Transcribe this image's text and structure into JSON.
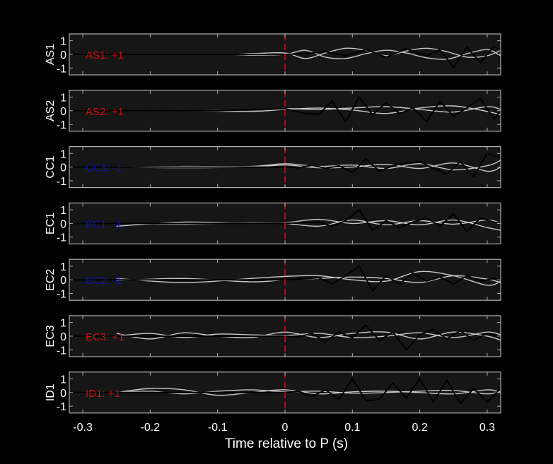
{
  "chart_data": {
    "type": "line",
    "xlabel": "Time relative to P (s)",
    "xlim": [
      -0.32,
      0.32
    ],
    "xticks": [
      -0.3,
      -0.2,
      -0.1,
      0,
      0.1,
      0.2,
      0.3
    ],
    "xtick_labels": [
      "-0.3",
      "-0.2",
      "-0.1",
      "0",
      "0.1",
      "0.2",
      "0.3"
    ],
    "ylim": [
      -1.5,
      1.5
    ],
    "yticks": [
      1,
      0,
      -1
    ],
    "ytick_labels": [
      "1",
      "0",
      "-1"
    ],
    "marker": {
      "x": 0,
      "color": "#d01010",
      "style": "dashed"
    },
    "colors": {
      "background": "#000000",
      "panel": "#161616",
      "frame": "#b0b0b0",
      "trace_black": "#000000",
      "trace_gray": "#c8c8c8",
      "polarity_positive": "#cc1111",
      "polarity_negative": "#1010aa"
    },
    "panels": [
      {
        "station": "AS1",
        "annotation": "AS1: +1",
        "polarity": "positive",
        "black": {
          "x": [
            -0.32,
            -0.25,
            -0.15,
            -0.05,
            0,
            0.03,
            0.06,
            0.09,
            0.12,
            0.15,
            0.18,
            0.21,
            0.23,
            0.25,
            0.27,
            0.29,
            0.31,
            0.32
          ],
          "y": [
            0,
            0,
            0,
            0,
            0,
            0.05,
            0.2,
            -0.1,
            0.35,
            -0.2,
            0.4,
            -0.1,
            0.35,
            -0.95,
            0.5,
            -0.6,
            0.6,
            0.3
          ]
        },
        "gray": [
          {
            "x": [
              -0.32,
              -0.1,
              -0.05,
              0,
              0.03,
              0.06,
              0.09,
              0.12,
              0.15,
              0.18,
              0.21,
              0.24,
              0.27,
              0.3,
              0.32
            ],
            "y": [
              0,
              0,
              0.05,
              0.1,
              -0.3,
              0.1,
              0.45,
              0.3,
              -0.1,
              0.25,
              0.45,
              0.2,
              -0.2,
              -0.1,
              0.3
            ]
          },
          {
            "x": [
              -0.32,
              -0.1,
              -0.05,
              0,
              0.03,
              0.06,
              0.09,
              0.12,
              0.15,
              0.18,
              0.21,
              0.24,
              0.27,
              0.3,
              0.32
            ],
            "y": [
              0,
              0,
              -0.05,
              0,
              0.3,
              -0.2,
              -0.3,
              0.05,
              0.3,
              0.1,
              -0.25,
              -0.35,
              0.05,
              0.35,
              -0.1
            ]
          }
        ]
      },
      {
        "station": "AS2",
        "annotation": "AS2: +1",
        "polarity": "positive",
        "black": {
          "x": [
            -0.32,
            -0.2,
            -0.1,
            0,
            0.03,
            0.05,
            0.07,
            0.09,
            0.11,
            0.13,
            0.15,
            0.17,
            0.19,
            0.21,
            0.23,
            0.25,
            0.27,
            0.29,
            0.31,
            0.32
          ],
          "y": [
            0,
            0,
            0,
            0.15,
            -0.2,
            -0.25,
            0.7,
            -0.8,
            1.0,
            -0.3,
            0.6,
            -0.2,
            0.2,
            -0.8,
            0.7,
            -0.4,
            0.2,
            0.9,
            -0.6,
            0
          ]
        },
        "gray": [
          {
            "x": [
              -0.25,
              -0.15,
              -0.05,
              0,
              0.05,
              0.1,
              0.15,
              0.2,
              0.25,
              0.3,
              0.32
            ],
            "y": [
              0,
              0,
              0.05,
              0.15,
              0.1,
              0.2,
              0.3,
              0.1,
              -0.1,
              0.3,
              0.1
            ]
          },
          {
            "x": [
              -0.25,
              -0.15,
              -0.05,
              0,
              0.05,
              0.1,
              0.15,
              0.2,
              0.25,
              0.3,
              0.32
            ],
            "y": [
              0,
              0,
              -0.05,
              0.1,
              0.2,
              0.05,
              -0.2,
              0.2,
              0.35,
              -0.05,
              -0.3
            ]
          }
        ]
      },
      {
        "station": "CC1",
        "annotation": "CC1: -1",
        "polarity": "negative",
        "black": {
          "x": [
            -0.32,
            -0.1,
            0,
            0.02,
            0.04,
            0.06,
            0.08,
            0.1,
            0.12,
            0.14,
            0.16,
            0.18,
            0.2,
            0.22,
            0.24,
            0.26,
            0.28,
            0.3,
            0.32
          ],
          "y": [
            0,
            0,
            0,
            -0.05,
            0.15,
            -0.1,
            0.1,
            -0.4,
            0.6,
            -0.3,
            0.1,
            0.3,
            0.4,
            -0.1,
            -0.5,
            0.4,
            -0.7,
            1.0,
            0.7
          ]
        },
        "gray": [
          {
            "x": [
              -0.25,
              -0.15,
              -0.05,
              0,
              0.05,
              0.1,
              0.15,
              0.2,
              0.25,
              0.3,
              0.32
            ],
            "y": [
              0,
              0.05,
              0.05,
              0.25,
              0.05,
              0.15,
              -0.1,
              0.25,
              -0.2,
              0.1,
              0.5
            ]
          },
          {
            "x": [
              -0.25,
              -0.15,
              -0.05,
              0,
              0.05,
              0.1,
              0.15,
              0.2,
              0.25,
              0.3,
              0.32
            ],
            "y": [
              0,
              -0.05,
              0,
              0.15,
              -0.05,
              0,
              0.2,
              -0.1,
              0.3,
              -0.3,
              0
            ]
          }
        ]
      },
      {
        "station": "EC1",
        "annotation": "EC1: -1",
        "polarity": "negative",
        "black": {
          "x": [
            -0.32,
            -0.15,
            0,
            0.02,
            0.05,
            0.07,
            0.09,
            0.11,
            0.13,
            0.15,
            0.17,
            0.19,
            0.21,
            0.23,
            0.25,
            0.27,
            0.29,
            0.31,
            0.32
          ],
          "y": [
            0,
            0,
            0,
            0.05,
            0.1,
            -0.2,
            0.2,
            1.0,
            -0.5,
            0.2,
            -0.3,
            0.1,
            0.4,
            -0.2,
            0.7,
            -0.6,
            0.4,
            0.1,
            0
          ]
        },
        "gray": [
          {
            "x": [
              -0.25,
              -0.15,
              -0.05,
              0,
              0.05,
              0.1,
              0.15,
              0.2,
              0.25,
              0.3,
              0.32
            ],
            "y": [
              -0.2,
              0.1,
              0,
              0.05,
              0.3,
              0,
              0.2,
              -0.1,
              0.25,
              -0.3,
              -0.5
            ]
          },
          {
            "x": [
              -0.25,
              -0.15,
              -0.05,
              0,
              0.05,
              0.1,
              0.15,
              0.2,
              0.25,
              0.3,
              0.32
            ],
            "y": [
              0,
              -0.05,
              0.05,
              0,
              -0.2,
              0.25,
              -0.1,
              0.2,
              -0.05,
              0.25,
              0
            ]
          }
        ]
      },
      {
        "station": "EC2",
        "annotation": "EC2: -1",
        "polarity": "negative",
        "black": {
          "x": [
            -0.32,
            -0.15,
            0,
            0.02,
            0.05,
            0.07,
            0.09,
            0.11,
            0.13,
            0.15,
            0.17,
            0.19,
            0.21,
            0.23,
            0.25,
            0.27,
            0.29,
            0.31,
            0.32
          ],
          "y": [
            0,
            0,
            0,
            0.05,
            0.15,
            -0.3,
            0.3,
            1.0,
            -0.8,
            0.3,
            -0.3,
            0.5,
            -0.1,
            0.2,
            -0.3,
            0.3,
            -0.1,
            0.1,
            0
          ]
        },
        "gray": [
          {
            "x": [
              -0.25,
              -0.15,
              -0.05,
              0,
              0.05,
              0.1,
              0.15,
              0.2,
              0.25,
              0.3,
              0.32
            ],
            "y": [
              0.1,
              -0.2,
              0.1,
              0.25,
              0.3,
              0,
              -0.1,
              0.6,
              0.3,
              -0.4,
              -0.1
            ]
          },
          {
            "x": [
              -0.25,
              -0.15,
              -0.05,
              0,
              0.05,
              0.1,
              0.15,
              0.2,
              0.25,
              0.3,
              0.32
            ],
            "y": [
              -0.05,
              0.1,
              -0.15,
              0,
              0.1,
              0.2,
              0.1,
              -0.2,
              0.3,
              0.05,
              -0.2
            ]
          }
        ]
      },
      {
        "station": "EC3",
        "annotation": "EC3: +1",
        "polarity": "positive",
        "black": {
          "x": [
            -0.32,
            -0.15,
            0,
            0.02,
            0.04,
            0.06,
            0.08,
            0.1,
            0.12,
            0.14,
            0.16,
            0.18,
            0.2,
            0.22,
            0.24,
            0.26,
            0.28,
            0.3,
            0.32
          ],
          "y": [
            0,
            0,
            0,
            -0.05,
            0.2,
            -0.4,
            0.3,
            -0.1,
            0.8,
            -0.3,
            0.3,
            -1.0,
            0.1,
            0.5,
            -0.2,
            0.4,
            -0.3,
            0.2,
            -0.1
          ]
        },
        "gray": [
          {
            "x": [
              -0.25,
              -0.2,
              -0.15,
              -0.1,
              -0.05,
              0,
              0.05,
              0.1,
              0.15,
              0.2,
              0.25,
              0.3,
              0.32
            ],
            "y": [
              0.2,
              -0.2,
              0.25,
              0,
              -0.1,
              0.3,
              -0.1,
              0.2,
              0.3,
              -0.2,
              0.3,
              0,
              -0.3
            ]
          },
          {
            "x": [
              -0.25,
              -0.2,
              -0.15,
              -0.1,
              -0.05,
              0,
              0.05,
              0.1,
              0.15,
              0.2,
              0.25,
              0.3,
              0.32
            ],
            "y": [
              0,
              0.2,
              -0.1,
              0.15,
              0.1,
              0.05,
              0.2,
              -0.1,
              0,
              0.25,
              -0.1,
              0.3,
              0.1
            ]
          }
        ]
      },
      {
        "station": "ID1",
        "annotation": "ID1: +1",
        "polarity": "positive",
        "black": {
          "x": [
            -0.32,
            -0.15,
            0,
            0.02,
            0.04,
            0.06,
            0.08,
            0.1,
            0.12,
            0.14,
            0.16,
            0.18,
            0.2,
            0.22,
            0.24,
            0.26,
            0.28,
            0.3,
            0.32
          ],
          "y": [
            0,
            0,
            0,
            0.1,
            -0.3,
            0.2,
            -0.5,
            1.0,
            -0.6,
            -0.5,
            0.7,
            -0.4,
            1.0,
            -0.7,
            0.9,
            -0.8,
            0.3,
            -0.7,
            0.3
          ]
        },
        "gray": [
          {
            "x": [
              -0.25,
              -0.2,
              -0.15,
              -0.1,
              -0.05,
              0,
              0.05,
              0.1,
              0.15,
              0.2,
              0.25,
              0.3,
              0.32
            ],
            "y": [
              0,
              0.3,
              0.2,
              -0.2,
              0,
              0.2,
              -0.1,
              0.05,
              0.1,
              0,
              -0.1,
              0.2,
              0
            ]
          },
          {
            "x": [
              -0.25,
              -0.2,
              -0.15,
              -0.1,
              -0.05,
              0,
              0.05,
              0.1,
              0.15,
              0.2,
              0.25,
              0.3,
              0.32
            ],
            "y": [
              0,
              0.1,
              -0.1,
              0.1,
              0.2,
              0.05,
              0.1,
              -0.05,
              0,
              0.1,
              0.15,
              -0.1,
              0.1
            ]
          }
        ]
      }
    ]
  }
}
